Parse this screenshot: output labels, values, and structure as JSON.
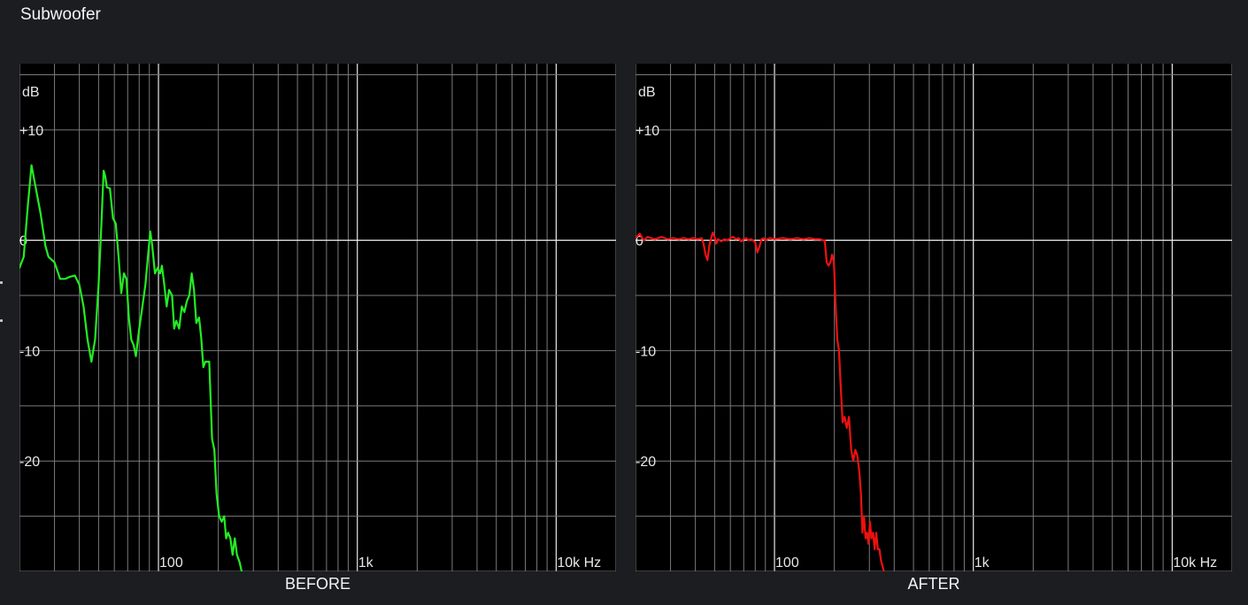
{
  "page": {
    "title": "Subwoofer"
  },
  "chart_data": [
    {
      "type": "line",
      "caption": "BEFORE",
      "ylabel": "dB",
      "xscale": "log",
      "xlim": [
        20,
        20000
      ],
      "ylim": [
        -30,
        16
      ],
      "yticks": [
        {
          "value": 10,
          "label": "+10"
        },
        {
          "value": 0,
          "label": "0"
        },
        {
          "value": -10,
          "label": "-10"
        },
        {
          "value": -20,
          "label": "-20"
        }
      ],
      "xticks": [
        {
          "value": 100,
          "label": "100"
        },
        {
          "value": 1000,
          "label": "1k"
        },
        {
          "value": 10000,
          "label": "10k Hz"
        }
      ],
      "grid": true,
      "series": [
        {
          "color": "#22ee22",
          "points": [
            [
              20,
              -2.5
            ],
            [
              21,
              -1.5
            ],
            [
              22,
              3
            ],
            [
              23,
              6.8
            ],
            [
              24,
              5
            ],
            [
              25.5,
              2.5
            ],
            [
              27,
              -0.5
            ],
            [
              28,
              -1.5
            ],
            [
              30,
              -2
            ],
            [
              32,
              -3.5
            ],
            [
              34,
              -3.5
            ],
            [
              36,
              -3.3
            ],
            [
              38,
              -3.2
            ],
            [
              40,
              -4
            ],
            [
              42,
              -6
            ],
            [
              44,
              -9
            ],
            [
              46,
              -11
            ],
            [
              48,
              -9
            ],
            [
              50,
              -4
            ],
            [
              51.5,
              1
            ],
            [
              53,
              6.3
            ],
            [
              54,
              5.8
            ],
            [
              55,
              4.8
            ],
            [
              57,
              4.7
            ],
            [
              59,
              2
            ],
            [
              61,
              1.5
            ],
            [
              63,
              -1.5
            ],
            [
              65,
              -4.8
            ],
            [
              67,
              -3
            ],
            [
              69,
              -3.5
            ],
            [
              71,
              -7
            ],
            [
              73,
              -9
            ],
            [
              75,
              -9.5
            ],
            [
              77,
              -10.5
            ],
            [
              80,
              -8
            ],
            [
              83,
              -6
            ],
            [
              86,
              -4
            ],
            [
              89,
              -1
            ],
            [
              91,
              0.8
            ],
            [
              93,
              -0.5
            ],
            [
              96,
              -3
            ],
            [
              99,
              -2.5
            ],
            [
              102,
              -3
            ],
            [
              104,
              -2.3
            ],
            [
              107,
              -4
            ],
            [
              110,
              -6
            ],
            [
              113,
              -4.5
            ],
            [
              117,
              -5
            ],
            [
              120,
              -8
            ],
            [
              123,
              -7.3
            ],
            [
              127,
              -8
            ],
            [
              131,
              -6
            ],
            [
              135,
              -6.5
            ],
            [
              139,
              -5.5
            ],
            [
              143,
              -5
            ],
            [
              147,
              -3
            ],
            [
              151,
              -4.5
            ],
            [
              155,
              -7.5
            ],
            [
              160,
              -7
            ],
            [
              164,
              -8.8
            ],
            [
              168,
              -11.5
            ],
            [
              172,
              -11
            ],
            [
              176,
              -11
            ],
            [
              180,
              -11
            ],
            [
              186,
              -18
            ],
            [
              191,
              -19
            ],
            [
              196,
              -23
            ],
            [
              202,
              -25
            ],
            [
              208,
              -25.5
            ],
            [
              214,
              -25
            ],
            [
              219,
              -27
            ],
            [
              224,
              -26.5
            ],
            [
              230,
              -27
            ],
            [
              236,
              -28.5
            ],
            [
              242,
              -27
            ],
            [
              248,
              -28.5
            ],
            [
              256,
              -29.2
            ],
            [
              262,
              -30
            ]
          ]
        }
      ]
    },
    {
      "type": "line",
      "caption": "AFTER",
      "ylabel": "dB",
      "xscale": "log",
      "xlim": [
        20,
        20000
      ],
      "ylim": [
        -30,
        16
      ],
      "yticks": [
        {
          "value": 10,
          "label": "+10"
        },
        {
          "value": 0,
          "label": "0"
        },
        {
          "value": -10,
          "label": "-10"
        },
        {
          "value": -20,
          "label": "-20"
        }
      ],
      "xticks": [
        {
          "value": 100,
          "label": "100"
        },
        {
          "value": 1000,
          "label": "1k"
        },
        {
          "value": 10000,
          "label": "10k Hz"
        }
      ],
      "grid": true,
      "series": [
        {
          "color": "#ee1111",
          "points": [
            [
              20,
              0.2
            ],
            [
              21,
              0.6
            ],
            [
              22,
              0
            ],
            [
              23,
              0.3
            ],
            [
              25,
              0.1
            ],
            [
              27,
              0.3
            ],
            [
              29,
              0.1
            ],
            [
              31,
              0.2
            ],
            [
              33,
              0.1
            ],
            [
              35,
              0.2
            ],
            [
              37,
              0.1
            ],
            [
              39,
              0.2
            ],
            [
              41,
              0.1
            ],
            [
              43,
              0.2
            ],
            [
              44,
              -0.3
            ],
            [
              45,
              -1.3
            ],
            [
              46,
              -1.8
            ],
            [
              47,
              -0.5
            ],
            [
              48,
              0.2
            ],
            [
              49,
              0.7
            ],
            [
              50,
              0.3
            ],
            [
              51,
              -0.3
            ],
            [
              52,
              0.1
            ],
            [
              54,
              -0.1
            ],
            [
              56,
              0.1
            ],
            [
              58,
              0
            ],
            [
              60,
              0.2
            ],
            [
              62,
              0.3
            ],
            [
              64,
              0.1
            ],
            [
              66,
              0.2
            ],
            [
              68,
              -0.1
            ],
            [
              70,
              0.1
            ],
            [
              72,
              0.2
            ],
            [
              74,
              0
            ],
            [
              76,
              0.1
            ],
            [
              78,
              0
            ],
            [
              80,
              -0.2
            ],
            [
              82,
              -1.1
            ],
            [
              84,
              -0.6
            ],
            [
              86,
              0.1
            ],
            [
              88,
              0.2
            ],
            [
              90,
              0
            ],
            [
              92,
              0.1
            ],
            [
              95,
              0.2
            ],
            [
              100,
              0.1
            ],
            [
              110,
              0.2
            ],
            [
              120,
              0.1
            ],
            [
              130,
              0.2
            ],
            [
              140,
              0.1
            ],
            [
              150,
              0.2
            ],
            [
              160,
              0.1
            ],
            [
              170,
              0.1
            ],
            [
              175,
              0
            ],
            [
              179,
              0
            ],
            [
              183,
              -2
            ],
            [
              187,
              -2.3
            ],
            [
              191,
              -2
            ],
            [
              195,
              -1.3
            ],
            [
              199,
              -2
            ],
            [
              203,
              -6
            ],
            [
              207,
              -9
            ],
            [
              211,
              -10
            ],
            [
              215,
              -13
            ],
            [
              220,
              -16.5
            ],
            [
              225,
              -16
            ],
            [
              231,
              -17
            ],
            [
              237,
              -16
            ],
            [
              243,
              -19
            ],
            [
              249,
              -20
            ],
            [
              255,
              -19
            ],
            [
              261,
              -19.5
            ],
            [
              267,
              -21
            ],
            [
              272,
              -23
            ],
            [
              277,
              -26.5
            ],
            [
              282,
              -25
            ],
            [
              287,
              -27
            ],
            [
              292,
              -26.5
            ],
            [
              297,
              -27.5
            ],
            [
              302,
              -25.5
            ],
            [
              307,
              -27
            ],
            [
              313,
              -26.5
            ],
            [
              319,
              -28
            ],
            [
              325,
              -26.5
            ],
            [
              331,
              -28
            ],
            [
              337,
              -28
            ],
            [
              343,
              -29
            ],
            [
              349,
              -29.5
            ],
            [
              355,
              -30
            ]
          ]
        }
      ]
    }
  ]
}
